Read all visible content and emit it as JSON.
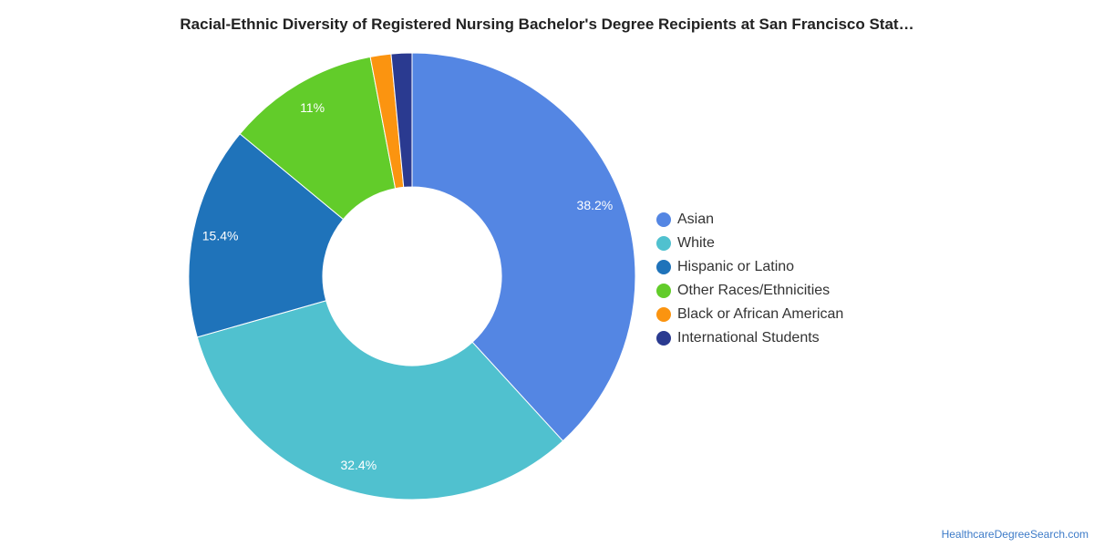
{
  "chart_data": {
    "type": "pie",
    "style": "donut",
    "title": "Racial-Ethnic Diversity of Registered Nursing Bachelor's Degree Recipients at San Francisco Stat…",
    "legend_position": "right",
    "slices": [
      {
        "name": "Asian",
        "value": 38.2,
        "label": "38.2%",
        "color": "#5486e3"
      },
      {
        "name": "White",
        "value": 32.4,
        "label": "32.4%",
        "color": "#50c1cf"
      },
      {
        "name": "Hispanic or Latino",
        "value": 15.4,
        "label": "15.4%",
        "color": "#1f73ba"
      },
      {
        "name": "Other Races/Ethnicities",
        "value": 11.0,
        "label": "11%",
        "color": "#62cc2a"
      },
      {
        "name": "Black or African American",
        "value": 1.5,
        "label": "",
        "color": "#fb9410"
      },
      {
        "name": "International Students",
        "value": 1.5,
        "label": "",
        "color": "#2a3a90"
      }
    ]
  },
  "footer": {
    "source": "HealthcareDegreeSearch.com"
  }
}
